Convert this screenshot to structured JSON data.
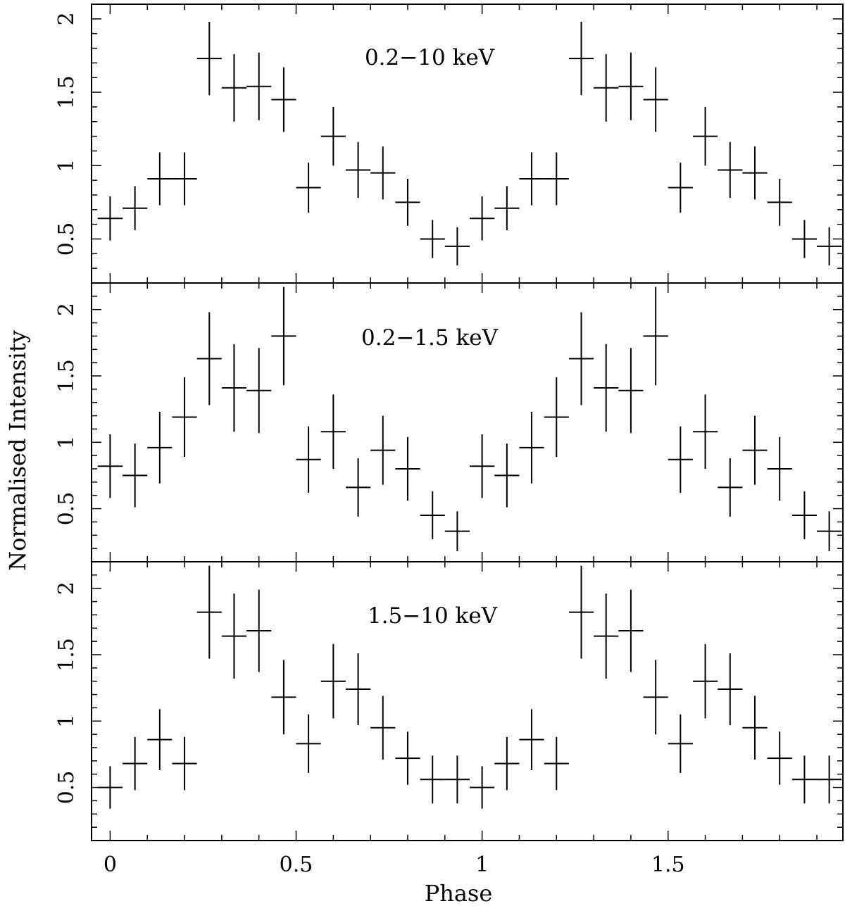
{
  "chart_data": [
    {
      "type": "scatter",
      "label": "0.2−10 keV",
      "ylabel": "Normalised Intensity",
      "xlabel": "Phase",
      "xlim": [
        -0.05,
        1.97
      ],
      "ylim": [
        0.2,
        2.1
      ],
      "yticks": [
        0.5,
        1,
        1.5,
        2
      ],
      "ytick_labels": [
        "0.5",
        "1",
        "1.5",
        "2"
      ],
      "xticks": [
        0,
        0.5,
        1,
        1.5
      ],
      "xtick_labels": [
        "0",
        "0.5",
        "1",
        "1.5"
      ],
      "x": [
        0.0,
        0.0667,
        0.1333,
        0.2,
        0.2667,
        0.3333,
        0.4,
        0.4667,
        0.5333,
        0.6,
        0.6667,
        0.7333,
        0.8,
        0.8667,
        0.9333,
        1.0,
        1.0667,
        1.1333,
        1.2,
        1.2667,
        1.3333,
        1.4,
        1.4667,
        1.5333,
        1.6,
        1.6667,
        1.7333,
        1.8,
        1.8667,
        1.9333
      ],
      "y": [
        0.64,
        0.71,
        0.91,
        0.91,
        1.73,
        1.53,
        1.54,
        1.45,
        0.85,
        1.2,
        0.97,
        0.95,
        0.75,
        0.5,
        0.45,
        0.64,
        0.71,
        0.91,
        0.91,
        1.73,
        1.53,
        1.54,
        1.45,
        0.85,
        1.2,
        0.97,
        0.95,
        0.75,
        0.5,
        0.45
      ],
      "y_error": [
        0.15,
        0.15,
        0.18,
        0.18,
        0.25,
        0.23,
        0.23,
        0.22,
        0.17,
        0.2,
        0.19,
        0.18,
        0.16,
        0.13,
        0.13,
        0.15,
        0.15,
        0.18,
        0.18,
        0.25,
        0.23,
        0.23,
        0.22,
        0.17,
        0.2,
        0.19,
        0.18,
        0.16,
        0.13,
        0.13
      ],
      "x_halfwidth": 0.0333
    },
    {
      "type": "scatter",
      "label": "0.2−1.5 keV",
      "ylabel": "Normalised Intensity",
      "xlabel": "Phase",
      "xlim": [
        -0.05,
        1.97
      ],
      "ylim": [
        0.1,
        2.2
      ],
      "yticks": [
        0.5,
        1,
        1.5,
        2
      ],
      "ytick_labels": [
        "0.5",
        "1",
        "1.5",
        "2"
      ],
      "xticks": [
        0,
        0.5,
        1,
        1.5
      ],
      "xtick_labels": [
        "0",
        "0.5",
        "1",
        "1.5"
      ],
      "x": [
        0.0,
        0.0667,
        0.1333,
        0.2,
        0.2667,
        0.3333,
        0.4,
        0.4667,
        0.5333,
        0.6,
        0.6667,
        0.7333,
        0.8,
        0.8667,
        0.9333,
        1.0,
        1.0667,
        1.1333,
        1.2,
        1.2667,
        1.3333,
        1.4,
        1.4667,
        1.5333,
        1.6,
        1.6667,
        1.7333,
        1.8,
        1.8667,
        1.9333
      ],
      "y": [
        0.82,
        0.75,
        0.96,
        1.19,
        1.63,
        1.41,
        1.39,
        1.8,
        0.87,
        1.08,
        0.66,
        0.94,
        0.8,
        0.45,
        0.33,
        0.82,
        0.75,
        0.96,
        1.19,
        1.63,
        1.41,
        1.39,
        1.8,
        0.87,
        1.08,
        0.66,
        0.94,
        0.8,
        0.45,
        0.33
      ],
      "y_error": [
        0.24,
        0.24,
        0.27,
        0.3,
        0.35,
        0.33,
        0.32,
        0.37,
        0.25,
        0.28,
        0.22,
        0.26,
        0.24,
        0.18,
        0.15,
        0.24,
        0.24,
        0.27,
        0.3,
        0.35,
        0.33,
        0.32,
        0.37,
        0.25,
        0.28,
        0.22,
        0.26,
        0.24,
        0.18,
        0.15
      ],
      "x_halfwidth": 0.0333
    },
    {
      "type": "scatter",
      "label": "1.5−10 keV",
      "ylabel": "Normalised Intensity",
      "xlabel": "Phase",
      "xlim": [
        -0.05,
        1.97
      ],
      "ylim": [
        0.1,
        2.2
      ],
      "yticks": [
        0.5,
        1,
        1.5,
        2
      ],
      "ytick_labels": [
        "0.5",
        "1",
        "1.5",
        "2"
      ],
      "xticks": [
        0,
        0.5,
        1,
        1.5
      ],
      "xtick_labels": [
        "0",
        "0.5",
        "1",
        "1.5"
      ],
      "x": [
        0.0,
        0.0667,
        0.1333,
        0.2,
        0.2667,
        0.3333,
        0.4,
        0.4667,
        0.5333,
        0.6,
        0.6667,
        0.7333,
        0.8,
        0.8667,
        0.9333,
        1.0,
        1.0667,
        1.1333,
        1.2,
        1.2667,
        1.3333,
        1.4,
        1.4667,
        1.5333,
        1.6,
        1.6667,
        1.7333,
        1.8,
        1.8667,
        1.9333
      ],
      "y": [
        0.5,
        0.68,
        0.86,
        0.68,
        1.82,
        1.64,
        1.68,
        1.18,
        0.83,
        1.3,
        1.24,
        0.95,
        0.72,
        0.56,
        0.56,
        0.5,
        0.68,
        0.86,
        0.68,
        1.82,
        1.64,
        1.68,
        1.18,
        0.83,
        1.3,
        1.24,
        0.95,
        0.72,
        0.56,
        0.56
      ],
      "y_error": [
        0.16,
        0.2,
        0.23,
        0.2,
        0.35,
        0.32,
        0.31,
        0.28,
        0.22,
        0.28,
        0.27,
        0.24,
        0.2,
        0.18,
        0.18,
        0.16,
        0.2,
        0.23,
        0.2,
        0.35,
        0.32,
        0.31,
        0.28,
        0.22,
        0.28,
        0.27,
        0.24,
        0.2,
        0.18,
        0.18
      ],
      "x_halfwidth": 0.0333
    }
  ],
  "figure": {
    "ylabel": "Normalised Intensity",
    "xlabel": "Phase"
  }
}
